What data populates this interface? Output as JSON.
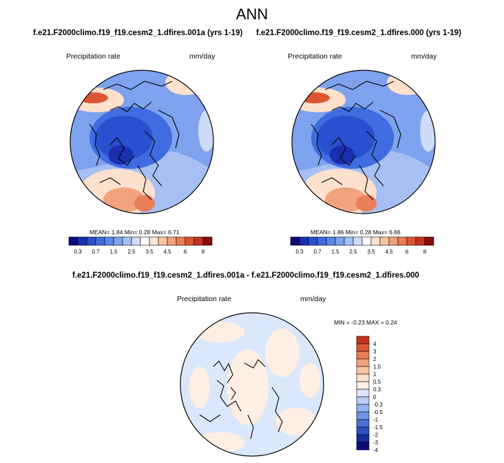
{
  "figure": {
    "title": "ANN"
  },
  "panels": [
    {
      "title": "f.e21.F2000climo.f19_f19.cesm2_1.dfires.001a (yrs 1-19)",
      "variable": "Precipitation rate",
      "units": "mm/day",
      "stats": "MEAN=  1.84  Min=  0.28  Max=  6.71"
    },
    {
      "title": "f.e21.F2000climo.f19_f19.cesm2_1.dfires.000 (yrs 1-19)",
      "variable": "Precipitation rate",
      "units": "mm/day",
      "stats": "MEAN=  1.86  Min=  0.28  Max=  6.66"
    }
  ],
  "diff_panel": {
    "title": "f.e21.F2000climo.f19_f19.cesm2_1.dfires.001a - f.e21.F2000climo.f19_f19.cesm2_1.dfires.000",
    "variable": "Precipitation rate",
    "units": "mm/day",
    "stats": "MIN =  -0.23 MAX =   0.24"
  },
  "horizontal_colorbar": {
    "colors": [
      "#0b0b7a",
      "#1a2fb0",
      "#2a4fd0",
      "#3f6ce0",
      "#5a86e8",
      "#7ea2ee",
      "#a7c0f3",
      "#cddcf8",
      "#ffffff",
      "#fde1cd",
      "#f8c4a4",
      "#f2a27c",
      "#ea7e58",
      "#dc5634",
      "#c8321c",
      "#8b0c0c"
    ],
    "labels": [
      "0.3",
      "0.7",
      "1.5",
      "2.5",
      "3.5",
      "4.5",
      "6",
      "8"
    ]
  },
  "vertical_colorbar": {
    "colors": [
      "#c8321c",
      "#dc5634",
      "#ea7e58",
      "#f2a27c",
      "#f8c4a4",
      "#fde1cd",
      "#ffefe2",
      "#dbe8fb",
      "#b8cff4",
      "#92b2ee",
      "#6f93e4",
      "#4b71d6",
      "#2e4fc0",
      "#1a2a9e",
      "#0b0b7a"
    ],
    "labels": [
      "4",
      "3",
      "2",
      "1.5",
      "1",
      "0.5",
      "0.3",
      "0",
      "-0.3",
      "-0.5",
      "-1",
      "-1.5",
      "-2",
      "-3",
      "-4"
    ]
  }
}
